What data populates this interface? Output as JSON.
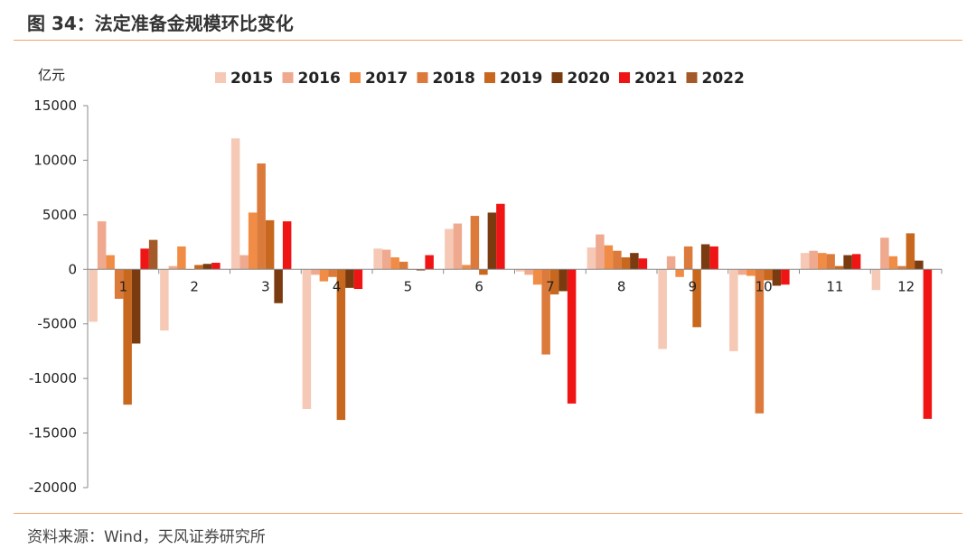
{
  "header": {
    "title": "图 34：法定准备金规模环比变化"
  },
  "footer": {
    "source": "资料来源：Wind，天风证券研究所"
  },
  "chart_data": {
    "type": "bar",
    "unit_label": "亿元",
    "categories": [
      "1",
      "2",
      "3",
      "4",
      "5",
      "6",
      "7",
      "8",
      "9",
      "10",
      "11",
      "12"
    ],
    "ylim": [
      -20000,
      15000
    ],
    "yticks": [
      15000,
      10000,
      5000,
      0,
      -5000,
      -10000,
      -15000,
      -20000
    ],
    "legend_position": "top",
    "grid": false,
    "series": [
      {
        "name": "2015",
        "color": "#f5c9b5",
        "values": [
          -4800,
          -5600,
          12000,
          -12800,
          1900,
          3700,
          -200,
          2000,
          -7300,
          -7500,
          1500,
          -1900
        ]
      },
      {
        "name": "2016",
        "color": "#efa98e",
        "values": [
          4400,
          300,
          1300,
          -500,
          1800,
          4200,
          -500,
          3200,
          1200,
          -500,
          1700,
          2900
        ]
      },
      {
        "name": "2017",
        "color": "#f08c45",
        "values": [
          1300,
          2100,
          5200,
          -1100,
          1100,
          400,
          -1400,
          2200,
          -700,
          -600,
          1500,
          1200
        ]
      },
      {
        "name": "2018",
        "color": "#db7a3a",
        "values": [
          -2700,
          0,
          9700,
          -700,
          700,
          4900,
          -7800,
          1700,
          2100,
          -13200,
          1400,
          300
        ]
      },
      {
        "name": "2019",
        "color": "#c8681f",
        "values": [
          -12400,
          400,
          4500,
          -13800,
          0,
          -500,
          -2300,
          1100,
          -5300,
          -1000,
          300,
          3300
        ]
      },
      {
        "name": "2020",
        "color": "#7a3b10",
        "values": [
          -6800,
          500,
          -3100,
          -1700,
          -100,
          5200,
          -2000,
          1500,
          2300,
          -1500,
          1300,
          800
        ]
      },
      {
        "name": "2021",
        "color": "#f01515",
        "values": [
          1900,
          600,
          4400,
          -1800,
          1300,
          6000,
          -12300,
          1000,
          2100,
          -1400,
          1400,
          -13700
        ]
      },
      {
        "name": "2022",
        "color": "#a35a28",
        "values": [
          2700,
          null,
          null,
          null,
          null,
          null,
          null,
          null,
          null,
          null,
          null,
          null
        ]
      }
    ]
  }
}
